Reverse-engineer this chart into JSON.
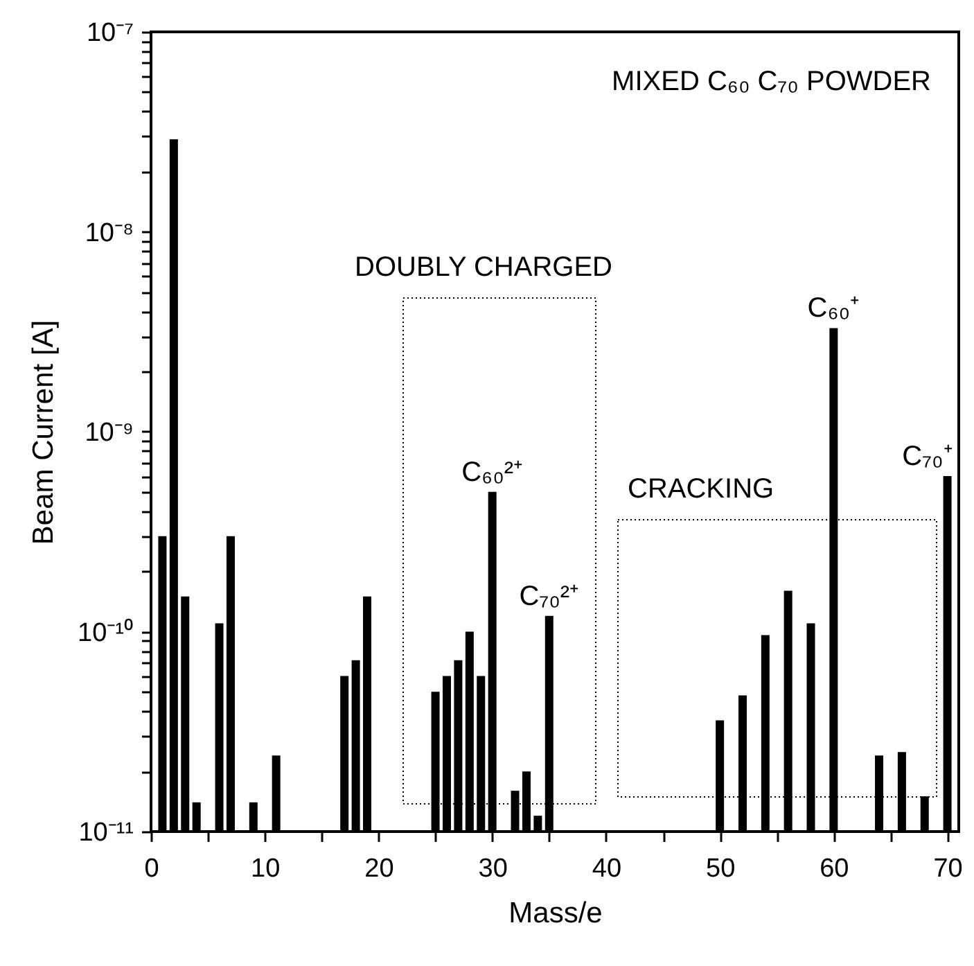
{
  "chart_data": {
    "type": "bar",
    "title": "MIXED C₆₀ C₇₀  POWDER",
    "xlabel": "Mass/e",
    "ylabel": "Beam Current [A]",
    "x": [
      1,
      2,
      3,
      4,
      6,
      7,
      9,
      11,
      17,
      18,
      19,
      25,
      26,
      27,
      28,
      29,
      30,
      32,
      33,
      34,
      35,
      50,
      52,
      54,
      56,
      58,
      60,
      64,
      66,
      68,
      70
    ],
    "values": [
      3e-10,
      2.9e-08,
      1.5e-10,
      1.4e-11,
      1.1e-10,
      3e-10,
      1.4e-11,
      2.4e-11,
      6e-11,
      7.2e-11,
      1.5e-10,
      5e-11,
      6e-11,
      7.2e-11,
      1e-10,
      6e-11,
      5e-10,
      1.6e-11,
      2e-11,
      1.2e-11,
      1.2e-10,
      3.6e-11,
      4.8e-11,
      9.6e-11,
      1.6e-10,
      1.1e-10,
      3.3e-09,
      2.4e-11,
      2.5e-11,
      1.5e-11,
      6e-10
    ],
    "color": "#000000",
    "xlim": [
      0,
      71
    ],
    "xticks": [
      0,
      {
        "value": 5,
        "label": null
      },
      10,
      {
        "value": 15,
        "label": null
      },
      20,
      {
        "value": 25,
        "label": null
      },
      30,
      {
        "value": 35,
        "label": null
      },
      40,
      {
        "value": 45,
        "label": null
      },
      50,
      {
        "value": 55,
        "label": null
      },
      60,
      {
        "value": 65,
        "label": null
      },
      70
    ],
    "ylim": [
      1e-11,
      1e-07
    ],
    "yticks": [
      {
        "value": 1e-11,
        "label": "10⁻¹¹"
      },
      {
        "value": 2e-11,
        "label": null
      },
      {
        "value": 3e-11,
        "label": null
      },
      {
        "value": 4e-11,
        "label": null
      },
      {
        "value": 5e-11,
        "label": null
      },
      {
        "value": 6e-11,
        "label": null
      },
      {
        "value": 7e-11,
        "label": null
      },
      {
        "value": 8e-11,
        "label": null
      },
      {
        "value": 9e-11,
        "label": null
      },
      {
        "value": 1e-10,
        "label": "10⁻¹⁰"
      },
      {
        "value": 2e-10,
        "label": null
      },
      {
        "value": 3e-10,
        "label": null
      },
      {
        "value": 4e-10,
        "label": null
      },
      {
        "value": 5e-10,
        "label": null
      },
      {
        "value": 6e-10,
        "label": null
      },
      {
        "value": 7e-10,
        "label": null
      },
      {
        "value": 8e-10,
        "label": null
      },
      {
        "value": 9e-10,
        "label": null
      },
      {
        "value": 1e-09,
        "label": "10⁻⁹"
      },
      {
        "value": 2e-09,
        "label": null
      },
      {
        "value": 3e-09,
        "label": null
      },
      {
        "value": 4e-09,
        "label": null
      },
      {
        "value": 5e-09,
        "label": null
      },
      {
        "value": 6e-09,
        "label": null
      },
      {
        "value": 7e-09,
        "label": null
      },
      {
        "value": 8e-09,
        "label": null
      },
      {
        "value": 9e-09,
        "label": null
      },
      {
        "value": 1e-08,
        "label": "10⁻⁸"
      },
      {
        "value": 2e-08,
        "label": null
      },
      {
        "value": 3e-08,
        "label": null
      },
      {
        "value": 4e-08,
        "label": null
      },
      {
        "value": 5e-08,
        "label": null
      },
      {
        "value": 6e-08,
        "label": null
      },
      {
        "value": 7e-08,
        "label": null
      },
      {
        "value": 8e-08,
        "label": null
      },
      {
        "value": 9e-08,
        "label": null
      },
      {
        "value": 1e-07,
        "label": "10⁻⁷"
      }
    ],
    "log": true,
    "grid": false,
    "annotations": [
      "DOUBLY CHARGED",
      "CRACKING",
      {
        "text": "C₆₀²⁺",
        "x": 30,
        "y": 5e-10
      },
      {
        "text": "C₇₀²⁺",
        "x": 35,
        "y": 1.2e-10
      },
      {
        "text": "C₆₀⁺",
        "x": 60,
        "y": 3.3e-09
      },
      {
        "text": "C₇₀⁺",
        "x": 70,
        "y": 6e-10
      }
    ]
  }
}
